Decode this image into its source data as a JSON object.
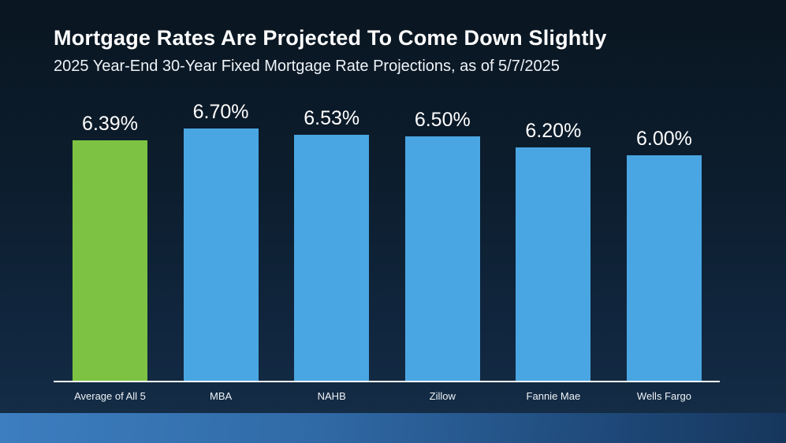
{
  "chart_data": {
    "type": "bar",
    "title": "Mortgage Rates Are Projected To Come Down Slightly",
    "subtitle": "2025 Year-End 30-Year Fixed Mortgage Rate Projections, as of 5/7/2025",
    "categories": [
      "Average of All 5",
      "MBA",
      "NAHB",
      "Zillow",
      "Fannie Mae",
      "Wells Fargo"
    ],
    "values": [
      6.39,
      6.7,
      6.53,
      6.5,
      6.2,
      6.0
    ],
    "value_labels": [
      "6.39%",
      "6.70%",
      "6.53%",
      "6.50%",
      "6.20%",
      "6.00%"
    ],
    "highlighted_category": "Average of All 5",
    "xlabel": "",
    "ylabel": "",
    "ylim": [
      0,
      6.7
    ],
    "grid": false,
    "legend": false,
    "y_axis_hidden": true
  },
  "colors": {
    "highlight_bar": "#7dc242",
    "bar": "#4aa6e2",
    "axis_line": "#ffffff",
    "title_text": "#ffffff",
    "label_text": "#eef3f8",
    "background_top": "#0a1621",
    "background_bottom": "#152e47",
    "footer_strip_left": "#3d7ec0",
    "footer_strip_right": "#16365c"
  }
}
